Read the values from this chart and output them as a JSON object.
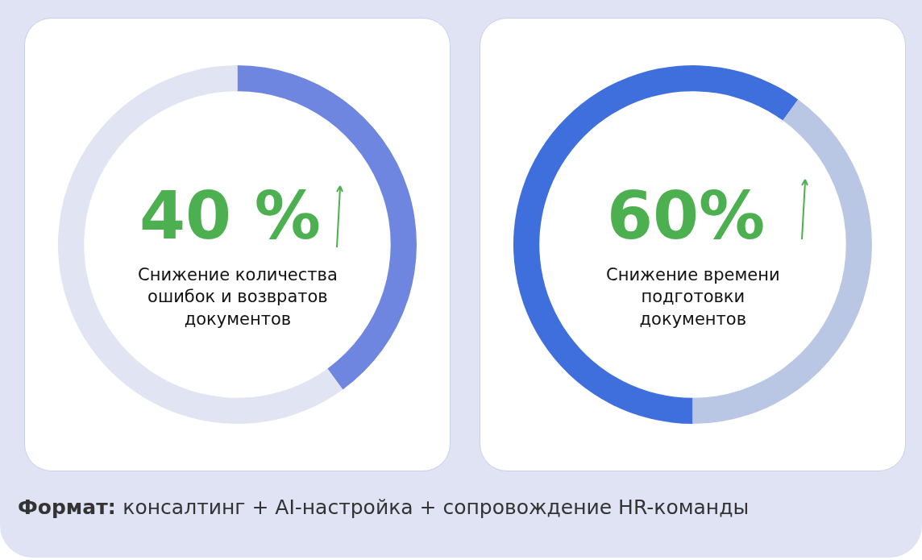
{
  "chart_data": [
    {
      "type": "donut",
      "categories": [
        null,
        null
      ],
      "values": [
        40,
        60
      ],
      "colors": [
        "#6f86e0",
        "#e0e4f3"
      ],
      "annotations": [
        "40 %",
        "Снижение количества\nошибок и возвратов\nдокументов"
      ]
    },
    {
      "type": "donut",
      "categories": [
        null,
        null
      ],
      "values": [
        60,
        40
      ],
      "colors": [
        "#3f6fdc",
        "#b9c6e4"
      ],
      "annotations": [
        "60%",
        "Снижение времени\nподготовки\nдокументов"
      ]
    },
    {
      "type": "other",
      "annotations": [
        "Формат:",
        "консалтинг + AI-настройка + сопровождение HR-команды"
      ]
    }
  ]
}
